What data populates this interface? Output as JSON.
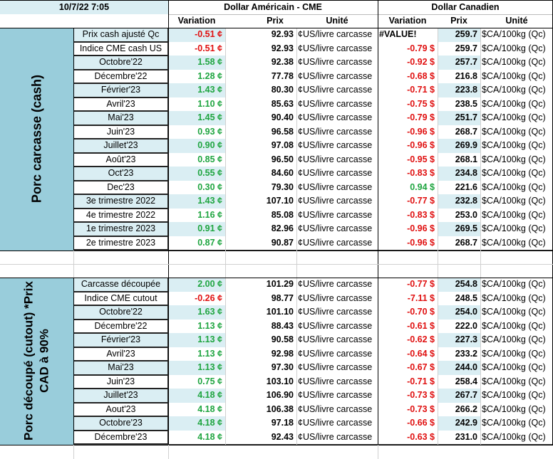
{
  "header": {
    "timestamp": "10/7/22 7:05",
    "usd_group": "Dollar Américain - CME",
    "cad_group": "Dollar Canadien",
    "col_variation": "Variation",
    "col_prix": "Prix",
    "col_unite": "Unité"
  },
  "sections": [
    {
      "label": "Porc carcasse (cash)",
      "rows": [
        {
          "name": "Prix cash ajusté Qc",
          "usd_var": "-0.51 ¢",
          "usd_dir": "down",
          "usd_prix": "92.93",
          "usd_unit": "¢US/livre carcasse",
          "cad_var": "#VALUE!",
          "cad_dir": "err",
          "cad_prix": "259.7",
          "cad_unit": "$CA/100kg (Qc)"
        },
        {
          "name": "Indice CME cash US",
          "usd_var": "-0.51 ¢",
          "usd_dir": "down",
          "usd_prix": "92.93",
          "usd_unit": "¢US/livre carcasse",
          "cad_var": "-0.79 $",
          "cad_dir": "down",
          "cad_prix": "259.7",
          "cad_unit": "$CA/100kg (Qc)"
        },
        {
          "name": "Octobre'22",
          "usd_var": "1.58 ¢",
          "usd_dir": "up",
          "usd_prix": "92.38",
          "usd_unit": "¢US/livre carcasse",
          "cad_var": "-0.92 $",
          "cad_dir": "down",
          "cad_prix": "257.7",
          "cad_unit": "$CA/100kg (Qc)"
        },
        {
          "name": "Décembre'22",
          "usd_var": "1.28 ¢",
          "usd_dir": "up",
          "usd_prix": "77.78",
          "usd_unit": "¢US/livre carcasse",
          "cad_var": "-0.68 $",
          "cad_dir": "down",
          "cad_prix": "216.8",
          "cad_unit": "$CA/100kg (Qc)"
        },
        {
          "name": "Février'23",
          "usd_var": "1.43 ¢",
          "usd_dir": "up",
          "usd_prix": "80.30",
          "usd_unit": "¢US/livre carcasse",
          "cad_var": "-0.71 $",
          "cad_dir": "down",
          "cad_prix": "223.8",
          "cad_unit": "$CA/100kg (Qc)"
        },
        {
          "name": "Avril'23",
          "usd_var": "1.10 ¢",
          "usd_dir": "up",
          "usd_prix": "85.63",
          "usd_unit": "¢US/livre carcasse",
          "cad_var": "-0.75 $",
          "cad_dir": "down",
          "cad_prix": "238.5",
          "cad_unit": "$CA/100kg (Qc)"
        },
        {
          "name": "Mai'23",
          "usd_var": "1.45 ¢",
          "usd_dir": "up",
          "usd_prix": "90.40",
          "usd_unit": "¢US/livre carcasse",
          "cad_var": "-0.79 $",
          "cad_dir": "down",
          "cad_prix": "251.7",
          "cad_unit": "$CA/100kg (Qc)"
        },
        {
          "name": "Juin'23",
          "usd_var": "0.93 ¢",
          "usd_dir": "up",
          "usd_prix": "96.58",
          "usd_unit": "¢US/livre carcasse",
          "cad_var": "-0.96 $",
          "cad_dir": "down",
          "cad_prix": "268.7",
          "cad_unit": "$CA/100kg (Qc)"
        },
        {
          "name": "Juillet'23",
          "usd_var": "0.90 ¢",
          "usd_dir": "up",
          "usd_prix": "97.08",
          "usd_unit": "¢US/livre carcasse",
          "cad_var": "-0.96 $",
          "cad_dir": "down",
          "cad_prix": "269.9",
          "cad_unit": "$CA/100kg (Qc)"
        },
        {
          "name": "Août'23",
          "usd_var": "0.85 ¢",
          "usd_dir": "up",
          "usd_prix": "96.50",
          "usd_unit": "¢US/livre carcasse",
          "cad_var": "-0.95 $",
          "cad_dir": "down",
          "cad_prix": "268.1",
          "cad_unit": "$CA/100kg (Qc)"
        },
        {
          "name": "Oct'23",
          "usd_var": "0.55 ¢",
          "usd_dir": "up",
          "usd_prix": "84.60",
          "usd_unit": "¢US/livre carcasse",
          "cad_var": "-0.83 $",
          "cad_dir": "down",
          "cad_prix": "234.8",
          "cad_unit": "$CA/100kg (Qc)"
        },
        {
          "name": "Dec'23",
          "usd_var": "0.30 ¢",
          "usd_dir": "up",
          "usd_prix": "79.30",
          "usd_unit": "¢US/livre carcasse",
          "cad_var": "0.94 $",
          "cad_dir": "up",
          "cad_prix": "221.6",
          "cad_unit": "$CA/100kg (Qc)"
        },
        {
          "name": "3e trimestre 2022",
          "usd_var": "1.43 ¢",
          "usd_dir": "up",
          "usd_prix": "107.10",
          "usd_unit": "¢US/livre carcasse",
          "cad_var": "-0.77 $",
          "cad_dir": "down",
          "cad_prix": "232.8",
          "cad_unit": "$CA/100kg (Qc)"
        },
        {
          "name": "4e trimestre 2022",
          "usd_var": "1.16 ¢",
          "usd_dir": "up",
          "usd_prix": "85.08",
          "usd_unit": "¢US/livre carcasse",
          "cad_var": "-0.83 $",
          "cad_dir": "down",
          "cad_prix": "253.0",
          "cad_unit": "$CA/100kg (Qc)"
        },
        {
          "name": "1e trimestre 2023",
          "usd_var": "0.91 ¢",
          "usd_dir": "up",
          "usd_prix": "82.96",
          "usd_unit": "¢US/livre carcasse",
          "cad_var": "-0.96 $",
          "cad_dir": "down",
          "cad_prix": "269.5",
          "cad_unit": "$CA/100kg (Qc)"
        },
        {
          "name": "2e trimestre 2023",
          "usd_var": "0.87 ¢",
          "usd_dir": "up",
          "usd_prix": "90.87",
          "usd_unit": "¢US/livre carcasse",
          "cad_var": "-0.96 $",
          "cad_dir": "down",
          "cad_prix": "268.7",
          "cad_unit": "$CA/100kg (Qc)"
        }
      ]
    },
    {
      "label": "Porc découpé (cutout) *Prix CAD à 90%",
      "rows": [
        {
          "name": "Carcasse découpée",
          "usd_var": "2.00 ¢",
          "usd_dir": "up",
          "usd_prix": "101.29",
          "usd_unit": "¢US/livre carcasse",
          "cad_var": "-0.77 $",
          "cad_dir": "down",
          "cad_prix": "254.8",
          "cad_unit": "$CA/100kg (Qc)"
        },
        {
          "name": "Indice CME cutout",
          "usd_var": "-0.26 ¢",
          "usd_dir": "down",
          "usd_prix": "98.77",
          "usd_unit": "¢US/livre carcasse",
          "cad_var": "-7.11 $",
          "cad_dir": "down",
          "cad_prix": "248.5",
          "cad_unit": "$CA/100kg (Qc)"
        },
        {
          "name": "Octobre'22",
          "usd_var": "1.63 ¢",
          "usd_dir": "up",
          "usd_prix": "101.10",
          "usd_unit": "¢US/livre carcasse",
          "cad_var": "-0.70 $",
          "cad_dir": "down",
          "cad_prix": "254.0",
          "cad_unit": "$CA/100kg (Qc)"
        },
        {
          "name": "Décembre'22",
          "usd_var": "1.13 ¢",
          "usd_dir": "up",
          "usd_prix": "88.43",
          "usd_unit": "¢US/livre carcasse",
          "cad_var": "-0.61 $",
          "cad_dir": "down",
          "cad_prix": "222.0",
          "cad_unit": "$CA/100kg (Qc)"
        },
        {
          "name": "Février'23",
          "usd_var": "1.13 ¢",
          "usd_dir": "up",
          "usd_prix": "90.58",
          "usd_unit": "¢US/livre carcasse",
          "cad_var": "-0.62 $",
          "cad_dir": "down",
          "cad_prix": "227.3",
          "cad_unit": "$CA/100kg (Qc)"
        },
        {
          "name": "Avril'23",
          "usd_var": "1.13 ¢",
          "usd_dir": "up",
          "usd_prix": "92.98",
          "usd_unit": "¢US/livre carcasse",
          "cad_var": "-0.64 $",
          "cad_dir": "down",
          "cad_prix": "233.2",
          "cad_unit": "$CA/100kg (Qc)"
        },
        {
          "name": "Mai'23",
          "usd_var": "1.13 ¢",
          "usd_dir": "up",
          "usd_prix": "97.30",
          "usd_unit": "¢US/livre carcasse",
          "cad_var": "-0.67 $",
          "cad_dir": "down",
          "cad_prix": "244.0",
          "cad_unit": "$CA/100kg (Qc)"
        },
        {
          "name": "Juin'23",
          "usd_var": "0.75 ¢",
          "usd_dir": "up",
          "usd_prix": "103.10",
          "usd_unit": "¢US/livre carcasse",
          "cad_var": "-0.71 $",
          "cad_dir": "down",
          "cad_prix": "258.4",
          "cad_unit": "$CA/100kg (Qc)"
        },
        {
          "name": "Juillet'23",
          "usd_var": "4.18 ¢",
          "usd_dir": "up",
          "usd_prix": "106.90",
          "usd_unit": "¢US/livre carcasse",
          "cad_var": "-0.73 $",
          "cad_dir": "down",
          "cad_prix": "267.7",
          "cad_unit": "$CA/100kg (Qc)"
        },
        {
          "name": "Aout'23",
          "usd_var": "4.18 ¢",
          "usd_dir": "up",
          "usd_prix": "106.38",
          "usd_unit": "¢US/livre carcasse",
          "cad_var": "-0.73 $",
          "cad_dir": "down",
          "cad_prix": "266.2",
          "cad_unit": "$CA/100kg (Qc)"
        },
        {
          "name": "Octobre'23",
          "usd_var": "4.18 ¢",
          "usd_dir": "up",
          "usd_prix": "97.18",
          "usd_unit": "¢US/livre carcasse",
          "cad_var": "-0.66 $",
          "cad_dir": "down",
          "cad_prix": "242.9",
          "cad_unit": "$CA/100kg (Qc)"
        },
        {
          "name": "Décembre'23",
          "usd_var": "4.18 ¢",
          "usd_dir": "up",
          "usd_prix": "92.43",
          "usd_unit": "¢US/livre carcasse",
          "cad_var": "-0.63 $",
          "cad_dir": "down",
          "cad_prix": "231.0",
          "cad_unit": "$CA/100kg (Qc)"
        }
      ]
    }
  ],
  "colors": {
    "sidebar": "#99cddb",
    "band": "#daeef3",
    "up": "#1fa540",
    "down": "#e01010"
  }
}
